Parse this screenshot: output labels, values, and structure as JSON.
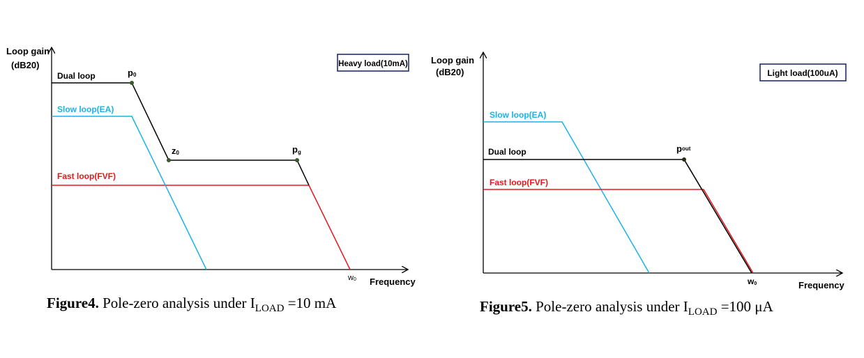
{
  "figure4": {
    "ylabel_line1": "Loop gain",
    "ylabel_line2": "(dB20)",
    "xlabel": "Frequency",
    "badge": "Heavy load(10mA)",
    "dual_label": "Dual loop",
    "slow_label": "Slow loop(EA)",
    "fast_label": "Fast loop(FVF)",
    "p0": "p",
    "p0_sub": "0",
    "z0": "z",
    "z0_sub": "0",
    "pg": "p",
    "pg_sub": "g",
    "w0": "w",
    "w0_sub": "0",
    "caption_bold": "Figure4.",
    "caption_text": " Pole-zero analysis under  I",
    "caption_sub": "LOAD",
    "caption_tail": " =10 mA"
  },
  "figure5": {
    "ylabel_line1": "Loop gain",
    "ylabel_line2": "(dB20)",
    "xlabel": "Frequency",
    "badge": "Light load(100uA)",
    "dual_label": "Dual loop",
    "slow_label": "Slow loop(EA)",
    "fast_label": "Fast loop(FVF)",
    "pout": "p",
    "pout_sub": "out",
    "w0": "w",
    "w0_sub": "0",
    "caption_bold": "Figure5.",
    "caption_text": " Pole-zero analysis under  I",
    "caption_sub": "LOAD",
    "caption_tail": " =100 μA"
  },
  "colors": {
    "dual": "#000000",
    "slow": "#1ab2e8",
    "fast": "#e8161a",
    "badge_border": "#1f2f6b",
    "marker": "#3b5a2a"
  }
}
